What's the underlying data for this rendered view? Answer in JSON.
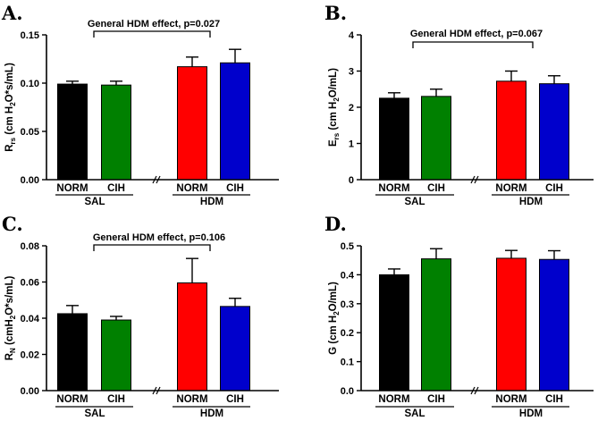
{
  "chart_data": [
    {
      "type": "bar",
      "panel": "A.",
      "title": "",
      "ylabel": "R_rs (cm H_2O*s/mL)",
      "ylim": [
        0,
        0.15
      ],
      "yticks": [
        "0.00",
        "0.05",
        "0.10",
        "0.15"
      ],
      "ytick_values": [
        0,
        0.05,
        0.1,
        0.15
      ],
      "categories": [
        "NORM",
        "CIH",
        "NORM",
        "CIH"
      ],
      "groups": [
        "SAL",
        "HDM"
      ],
      "values": [
        0.099,
        0.098,
        0.117,
        0.121
      ],
      "errors": [
        0.003,
        0.004,
        0.01,
        0.014
      ],
      "colors": [
        "#000000",
        "#008000",
        "#ff0000",
        "#0000cc"
      ],
      "annotation": "General HDM effect, p=0.027"
    },
    {
      "type": "bar",
      "panel": "B.",
      "title": "",
      "ylabel": "E_rs (cm H_2O/mL)",
      "ylim": [
        0,
        4
      ],
      "yticks": [
        "0",
        "1",
        "2",
        "3",
        "4"
      ],
      "ytick_values": [
        0,
        1,
        2,
        3,
        4
      ],
      "categories": [
        "NORM",
        "CIH",
        "NORM",
        "CIH"
      ],
      "groups": [
        "SAL",
        "HDM"
      ],
      "values": [
        2.25,
        2.3,
        2.72,
        2.65
      ],
      "errors": [
        0.15,
        0.2,
        0.28,
        0.22
      ],
      "colors": [
        "#000000",
        "#008000",
        "#ff0000",
        "#0000cc"
      ],
      "annotation": "General HDM effect, p=0.067"
    },
    {
      "type": "bar",
      "panel": "C.",
      "title": "",
      "ylabel": "R_N (cmH_2O*s/mL)",
      "ylim": [
        0,
        0.08
      ],
      "yticks": [
        "0.00",
        "0.02",
        "0.04",
        "0.06",
        "0.08"
      ],
      "ytick_values": [
        0,
        0.02,
        0.04,
        0.06,
        0.08
      ],
      "categories": [
        "NORM",
        "CIH",
        "NORM",
        "CIH"
      ],
      "groups": [
        "SAL",
        "HDM"
      ],
      "values": [
        0.0425,
        0.039,
        0.0595,
        0.0465
      ],
      "errors": [
        0.0045,
        0.002,
        0.0135,
        0.0045
      ],
      "colors": [
        "#000000",
        "#008000",
        "#ff0000",
        "#0000cc"
      ],
      "annotation": "General HDM effect, p=0.106"
    },
    {
      "type": "bar",
      "panel": "D.",
      "title": "",
      "ylabel": "G (cm H_2O/mL)",
      "ylim": [
        0,
        0.5
      ],
      "yticks": [
        "0.0",
        "0.1",
        "0.2",
        "0.3",
        "0.4",
        "0.5"
      ],
      "ytick_values": [
        0,
        0.1,
        0.2,
        0.3,
        0.4,
        0.5
      ],
      "categories": [
        "NORM",
        "CIH",
        "NORM",
        "CIH"
      ],
      "groups": [
        "SAL",
        "HDM"
      ],
      "values": [
        0.4,
        0.455,
        0.457,
        0.453
      ],
      "errors": [
        0.02,
        0.035,
        0.027,
        0.03
      ],
      "colors": [
        "#000000",
        "#008000",
        "#ff0000",
        "#0000cc"
      ],
      "annotation": ""
    }
  ]
}
